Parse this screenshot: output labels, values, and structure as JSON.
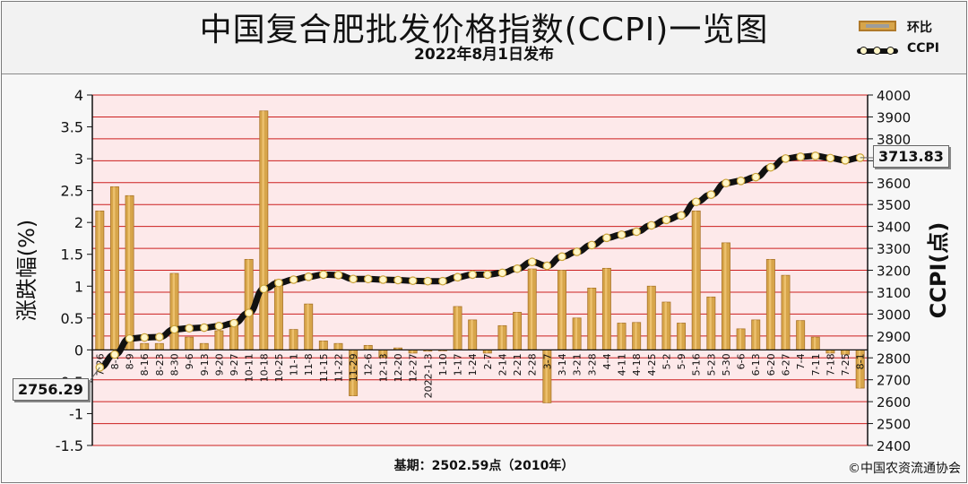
{
  "header": {
    "title": "中国复合肥批发价格指数(CCPI)一览图",
    "subtitle": "2022年8月1日发布"
  },
  "legend": {
    "bar_label": "环比",
    "line_label": "CCPI"
  },
  "footer": {
    "base_note": "基期：2502.59点（2010年）",
    "copyright": "©中国农资流通协会"
  },
  "callouts": {
    "start": "2756.29",
    "end": "3713.83"
  },
  "colors": {
    "grid_red": "#cc1f1f",
    "plot_bg": "#fde9ea",
    "bar_fill": "#d7a54a",
    "line": "#111111",
    "marker": "#fff6c9"
  },
  "chart_data": {
    "type": "bar",
    "title": "中国复合肥批发价格指数(CCPI)一览图",
    "subtitle": "2022年8月1日发布",
    "ylabel": "涨跌幅(%)",
    "y2label": "CCPI(点)",
    "ylim": [
      -1.5,
      4
    ],
    "y2lim": [
      2400,
      4000
    ],
    "yticks": [
      "-1.5",
      "-1",
      "-0.5",
      "0",
      "0.5",
      "1",
      "1.5",
      "2",
      "2.5",
      "3",
      "3.5",
      "4"
    ],
    "y2ticks": [
      "2400",
      "2500",
      "2600",
      "2700",
      "2800",
      "2900",
      "3000",
      "3100",
      "3200",
      "3300",
      "3400",
      "3500",
      "3600",
      "3700",
      "3800",
      "3900",
      "4000"
    ],
    "categories": [
      "7-26",
      "8-2",
      "8-9",
      "8-16",
      "8-23",
      "8-30",
      "9-6",
      "9-13",
      "9-20",
      "9-27",
      "10-11",
      "10-18",
      "10-25",
      "11-1",
      "11-8",
      "11-15",
      "11-22",
      "11-29",
      "12-6",
      "12-13",
      "12-20",
      "12-27",
      "2022-1-3",
      "1-10",
      "1-17",
      "1-24",
      "2-7",
      "2-14",
      "2-21",
      "2-28",
      "3-7",
      "3-14",
      "3-21",
      "3-28",
      "4-4",
      "4-11",
      "4-18",
      "4-25",
      "5-2",
      "5-9",
      "5-16",
      "5-23",
      "5-30",
      "6-6",
      "6-13",
      "6-20",
      "6-27",
      "7-4",
      "7-11",
      "7-18",
      "7-25",
      "8-1"
    ],
    "series": [
      {
        "name": "环比",
        "type": "bar",
        "axis": "left",
        "values": [
          2.18,
          2.56,
          2.42,
          0.1,
          0.1,
          1.2,
          0.2,
          0.1,
          0.3,
          0.4,
          1.42,
          3.75,
          1.1,
          0.32,
          0.72,
          0.14,
          0.1,
          -0.72,
          0.07,
          -0.12,
          0.03,
          -0.05,
          -0.02,
          -0.01,
          0.68,
          0.47,
          -0.05,
          0.38,
          0.59,
          1.27,
          -0.83,
          1.25,
          0.5,
          0.97,
          1.28,
          0.42,
          0.43,
          1.0,
          0.75,
          0.42,
          2.18,
          0.83,
          1.68,
          0.33,
          0.47,
          1.42,
          1.17,
          0.46,
          0.2,
          -0.05,
          -0.07,
          -0.6
        ]
      },
      {
        "name": "CCPI",
        "type": "line",
        "axis": "right",
        "values": [
          2756.29,
          2815,
          2888,
          2893,
          2895,
          2930,
          2935,
          2938,
          2945,
          2958,
          3005,
          3115,
          3142,
          3157,
          3170,
          3180,
          3178,
          3160,
          3160,
          3157,
          3155,
          3152,
          3150,
          3150,
          3168,
          3180,
          3180,
          3188,
          3207,
          3238,
          3220,
          3262,
          3284,
          3315,
          3348,
          3362,
          3376,
          3405,
          3430,
          3450,
          3512,
          3545,
          3598,
          3608,
          3625,
          3670,
          3710,
          3718,
          3722,
          3712,
          3702,
          3713.83
        ]
      }
    ],
    "grid": true
  }
}
